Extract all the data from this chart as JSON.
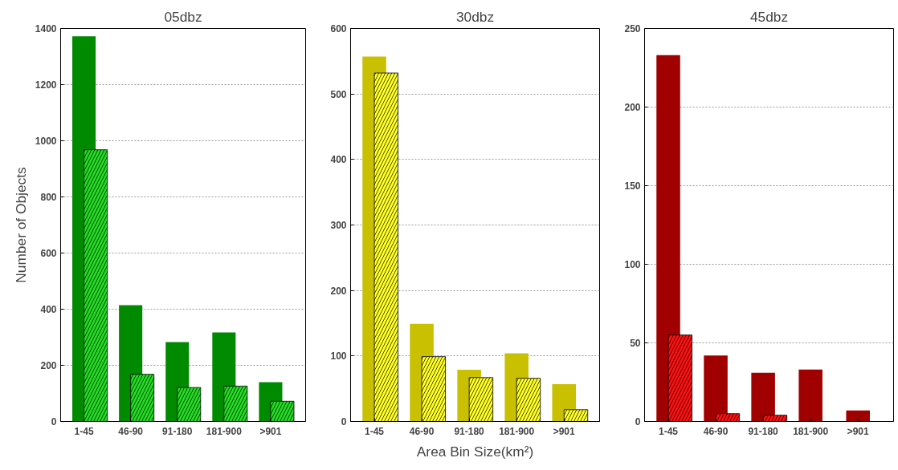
{
  "chart_data": [
    {
      "type": "bar",
      "title": "05dbz",
      "ylabel": "Number of Objects",
      "categories": [
        "1-45",
        "46-90",
        "91-180",
        "181-900",
        ">901"
      ],
      "ylim": [
        0,
        1400
      ],
      "yticks": [
        0,
        200,
        400,
        600,
        800,
        1000,
        1200,
        1400
      ],
      "grid": "y",
      "series": [
        {
          "color": "#008a00",
          "values": [
            1372,
            414,
            283,
            317,
            140
          ]
        },
        {
          "color": "#22dd22",
          "values": [
            968,
            168,
            121,
            126,
            72
          ]
        }
      ]
    },
    {
      "type": "bar",
      "title": "30dbz",
      "xlabel": "Area Bin Size(km²)",
      "categories": [
        "1-45",
        "46-90",
        "91-180",
        "181-900",
        ">901"
      ],
      "ylim": [
        0,
        600
      ],
      "yticks": [
        0,
        100,
        200,
        300,
        400,
        500,
        600
      ],
      "grid": "y",
      "series": [
        {
          "color": "#c8c000",
          "values": [
            557,
            149,
            79,
            104,
            57
          ]
        },
        {
          "color": "#ffff22",
          "values": [
            532,
            99,
            67,
            66,
            18
          ]
        }
      ]
    },
    {
      "type": "bar",
      "title": "45dbz",
      "categories": [
        "1-45",
        "46-90",
        "91-180",
        "181-900",
        ">901"
      ],
      "ylim": [
        0,
        250
      ],
      "yticks": [
        0,
        50,
        100,
        150,
        200,
        250
      ],
      "grid": "y",
      "series": [
        {
          "color": "#a00000",
          "values": [
            233,
            42,
            31,
            33,
            7
          ]
        },
        {
          "color": "#ff1010",
          "values": [
            55,
            5,
            4,
            null,
            null
          ]
        }
      ]
    }
  ]
}
